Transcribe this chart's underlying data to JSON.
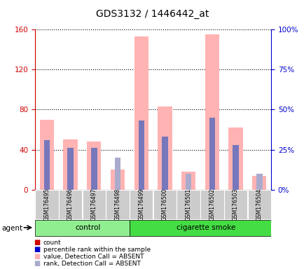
{
  "title": "GDS3132 / 1446442_at",
  "samples": [
    "GSM176495",
    "GSM176496",
    "GSM176497",
    "GSM176498",
    "GSM176499",
    "GSM176500",
    "GSM176501",
    "GSM176502",
    "GSM176503",
    "GSM176504"
  ],
  "pink_bars": [
    70,
    50,
    48,
    20,
    153,
    83,
    18,
    155,
    62,
    14
  ],
  "blue_bars_pct": [
    31,
    26,
    26,
    0,
    43,
    33,
    0,
    45,
    28,
    0
  ],
  "rank_absent_pct": [
    0,
    0,
    0,
    20,
    0,
    0,
    10,
    0,
    0,
    10
  ],
  "left_ylim": [
    0,
    160
  ],
  "right_ylim": [
    0,
    100
  ],
  "left_yticks": [
    0,
    40,
    80,
    120,
    160
  ],
  "right_yticks": [
    0,
    25,
    50,
    75,
    100
  ],
  "right_yticklabels": [
    "0%",
    "25%",
    "50%",
    "75%",
    "100%"
  ],
  "pink_color": "#FFB3B3",
  "blue_color": "#7777BB",
  "light_blue_color": "#AAAACC",
  "left_axis_color": "#CC0000",
  "right_axis_color": "#0000CC",
  "tick_label_bg": "#CCCCCC",
  "control_color": "#90EE90",
  "smoke_color": "#44DD44",
  "legend_colors": [
    "#CC0000",
    "#0000CC",
    "#FFB3B3",
    "#AAAACC"
  ],
  "legend_labels": [
    "count",
    "percentile rank within the sample",
    "value, Detection Call = ABSENT",
    "rank, Detection Call = ABSENT"
  ]
}
